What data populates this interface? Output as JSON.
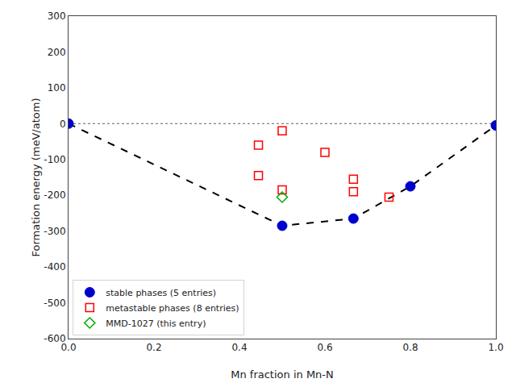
{
  "chart_data": {
    "type": "scatter",
    "xlabel": "Mn fraction in Mn-N",
    "ylabel": "Formation energy (meV/atom)",
    "xlim": [
      0.0,
      1.0
    ],
    "ylim": [
      -600,
      300
    ],
    "xticks": [
      {
        "value": 0.0,
        "label": "0.0"
      },
      0.2,
      0.4,
      0.6,
      0.8,
      {
        "value": 1.0,
        "label": "1.0"
      }
    ],
    "yticks": [
      -600,
      -500,
      -400,
      -300,
      -200,
      -100,
      0,
      100,
      200,
      300
    ],
    "grid": false,
    "legend": "lower left",
    "series": [
      {
        "type": "hline",
        "values": [
          0
        ],
        "color": "gray",
        "line_style": "dotted"
      },
      {
        "type": "line",
        "x": [
          0.0,
          0.5,
          0.6667,
          0.8,
          1.0
        ],
        "values": [
          0.0,
          -285.0,
          -265.0,
          -175.0,
          -5.0
        ],
        "color": "black",
        "line_style": "dashed"
      },
      {
        "type": "scatter",
        "name": "stable phases (5 entries)",
        "x": [
          0.0,
          0.5,
          0.6667,
          0.8,
          1.0
        ],
        "values": [
          0.0,
          -285.0,
          -265.0,
          -175.0,
          -5.0
        ],
        "color": "#0000cc",
        "marker": "circle"
      },
      {
        "type": "scatter",
        "name": "metastable phases (8 entries)",
        "x": [
          0.4444,
          0.4444,
          0.5,
          0.5,
          0.6,
          0.6667,
          0.6667,
          0.75
        ],
        "values": [
          -60.0,
          -145.0,
          -20.0,
          -185.0,
          -80.0,
          -155.0,
          -190.0,
          -205.0
        ],
        "color": "#ff0000",
        "marker": "open square"
      },
      {
        "type": "scatter",
        "name": "MMD-1027 (this entry)",
        "x": [
          0.5
        ],
        "values": [
          -205.0
        ],
        "color": "#00aa00",
        "marker": "open diamond"
      }
    ]
  }
}
